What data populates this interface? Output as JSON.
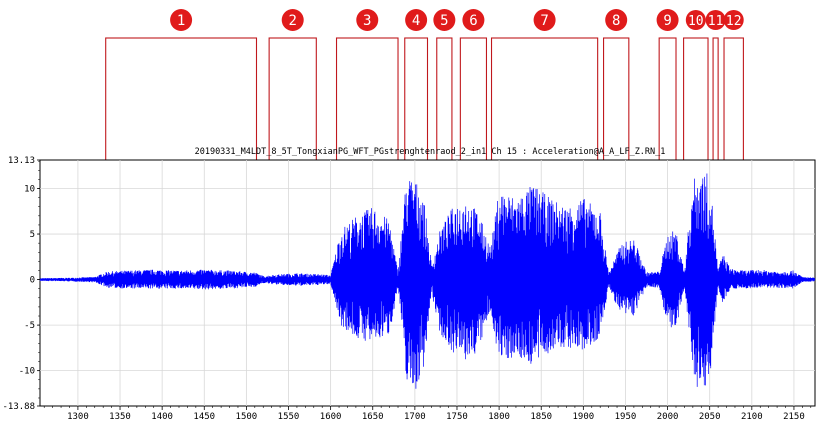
{
  "chart_data": {
    "type": "line",
    "title": "20190331_M4LDT_8_5T_TongxianPG_WFT_PGstrenghtenraod_2_in1  Ch 15 : Acceleration@A_A_LF_Z.RN_1",
    "xlabel": "",
    "ylabel": "",
    "xlim": [
      1255,
      2175
    ],
    "ylim": [
      -13.88,
      13.13
    ],
    "xticks": [
      1300,
      1350,
      1400,
      1450,
      1500,
      1550,
      1600,
      1650,
      1700,
      1750,
      1800,
      1850,
      1900,
      1950,
      2000,
      2050,
      2100,
      2150
    ],
    "yticks": [
      {
        "value": 13.13,
        "label": "13.13"
      },
      {
        "value": 10,
        "label": "10"
      },
      {
        "value": 5,
        "label": "5"
      },
      {
        "value": 0,
        "label": "0"
      },
      {
        "value": -5,
        "label": "-5"
      },
      {
        "value": -10,
        "label": "-10"
      },
      {
        "value": -13.88,
        "label": "-13.88"
      }
    ],
    "grid": true,
    "line_color": "#0000ff",
    "series": [
      {
        "signal_type": "vibration acceleration envelope",
        "x": [
          1255,
          1290,
          1320,
          1335,
          1360,
          1390,
          1420,
          1450,
          1480,
          1510,
          1520,
          1540,
          1560,
          1585,
          1600,
          1612,
          1630,
          1650,
          1670,
          1680,
          1690,
          1700,
          1710,
          1720,
          1730,
          1745,
          1760,
          1775,
          1790,
          1800,
          1820,
          1840,
          1860,
          1880,
          1900,
          1920,
          1930,
          1945,
          1960,
          1975,
          1990,
          2000,
          2010,
          2020,
          2030,
          2040,
          2050,
          2060,
          2065,
          2075,
          2090,
          2110,
          2130,
          2150,
          2160,
          2175
        ],
        "upper": [
          0.15,
          0.2,
          0.3,
          0.9,
          1.0,
          1.1,
          1.0,
          1.1,
          1.0,
          0.8,
          0.4,
          0.6,
          0.7,
          0.6,
          0.5,
          5.5,
          7.0,
          8.0,
          6.5,
          0.8,
          11.5,
          11.0,
          9.5,
          1.5,
          5.5,
          8.0,
          9.0,
          7.5,
          3.5,
          10.0,
          9.0,
          10.5,
          9.0,
          8.0,
          9.0,
          7.5,
          0.8,
          4.0,
          4.5,
          0.8,
          0.9,
          5.0,
          5.5,
          0.9,
          11.0,
          12.0,
          11.5,
          1.0,
          3.0,
          1.2,
          1.0,
          1.1,
          0.9,
          1.0,
          0.3,
          0.2
        ],
        "lower": [
          -0.15,
          -0.2,
          -0.3,
          -0.9,
          -1.0,
          -1.0,
          -1.0,
          -1.1,
          -1.0,
          -0.8,
          -0.4,
          -0.6,
          -0.7,
          -0.6,
          -0.5,
          -5.0,
          -6.5,
          -7.0,
          -6.0,
          -0.8,
          -11.0,
          -12.5,
          -10.0,
          -1.5,
          -6.0,
          -8.0,
          -9.0,
          -8.0,
          -3.5,
          -9.0,
          -8.5,
          -9.5,
          -8.0,
          -7.5,
          -8.0,
          -6.5,
          -0.8,
          -4.0,
          -4.0,
          -0.8,
          -0.9,
          -5.0,
          -6.0,
          -0.9,
          -10.0,
          -13.5,
          -11.0,
          -1.0,
          -2.5,
          -1.0,
          -1.0,
          -0.9,
          -0.9,
          -1.0,
          -0.3,
          -0.2
        ]
      }
    ],
    "annotations": [
      {
        "label": "1",
        "x_start": 1333,
        "x_end": 1512
      },
      {
        "label": "2",
        "x_start": 1527,
        "x_end": 1583
      },
      {
        "label": "3",
        "x_start": 1607,
        "x_end": 1680
      },
      {
        "label": "4",
        "x_start": 1688,
        "x_end": 1715
      },
      {
        "label": "5",
        "x_start": 1726,
        "x_end": 1744
      },
      {
        "label": "6",
        "x_start": 1754,
        "x_end": 1785
      },
      {
        "label": "7",
        "x_start": 1791,
        "x_end": 1917
      },
      {
        "label": "8",
        "x_start": 1924,
        "x_end": 1954
      },
      {
        "label": "9",
        "x_start": 1990,
        "x_end": 2010
      },
      {
        "label": "10",
        "x_start": 2019,
        "x_end": 2048
      },
      {
        "label": "11",
        "x_start": 2054,
        "x_end": 2060
      },
      {
        "label": "12",
        "x_start": 2067,
        "x_end": 2090
      }
    ],
    "annotation_colors": {
      "badge": "#e01b1b",
      "badge_text": "#ffffff",
      "box": "#c0181d"
    }
  }
}
